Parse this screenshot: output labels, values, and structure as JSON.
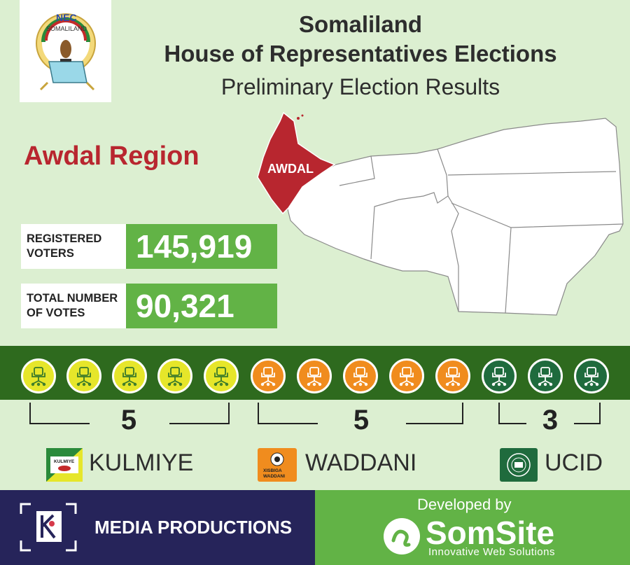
{
  "logo": {
    "org_abbr": "NEC",
    "org_name": "SOMALILAND"
  },
  "header": {
    "line1": "Somaliland",
    "line2": "House of Representatives Elections",
    "line3": "Preliminary Election Results"
  },
  "region": {
    "title": "Awdal Region",
    "map_label": "AWDAL"
  },
  "stats": {
    "registered_label_1": "REGISTERED",
    "registered_label_2": "VOTERS",
    "registered_value": "145,919",
    "total_label_1": "TOTAL NUMBER",
    "total_label_2": "OF VOTES",
    "total_value": "90,321"
  },
  "parties": [
    {
      "name": "KULMIYE",
      "seats": "5",
      "seat_color": "#e6e62a",
      "logo_text": "KULMIYE"
    },
    {
      "name": "WADDANI",
      "seats": "5",
      "seat_color": "#f08c1e",
      "logo_text_1": "XISBIGA",
      "logo_text_2": "WADDANI"
    },
    {
      "name": "UCID",
      "seats": "3",
      "seat_color": "#1f6b3d"
    }
  ],
  "footer": {
    "media": "MEDIA PRODUCTIONS",
    "developed_by": "Developed by",
    "brand": "SomSite",
    "tagline": "Innovative Web Solutions"
  },
  "colors": {
    "background": "#dcefd1",
    "accent_red": "#b8262f",
    "green": "#62b346",
    "dark_green": "#2e6a1e",
    "navy": "#26245a"
  }
}
